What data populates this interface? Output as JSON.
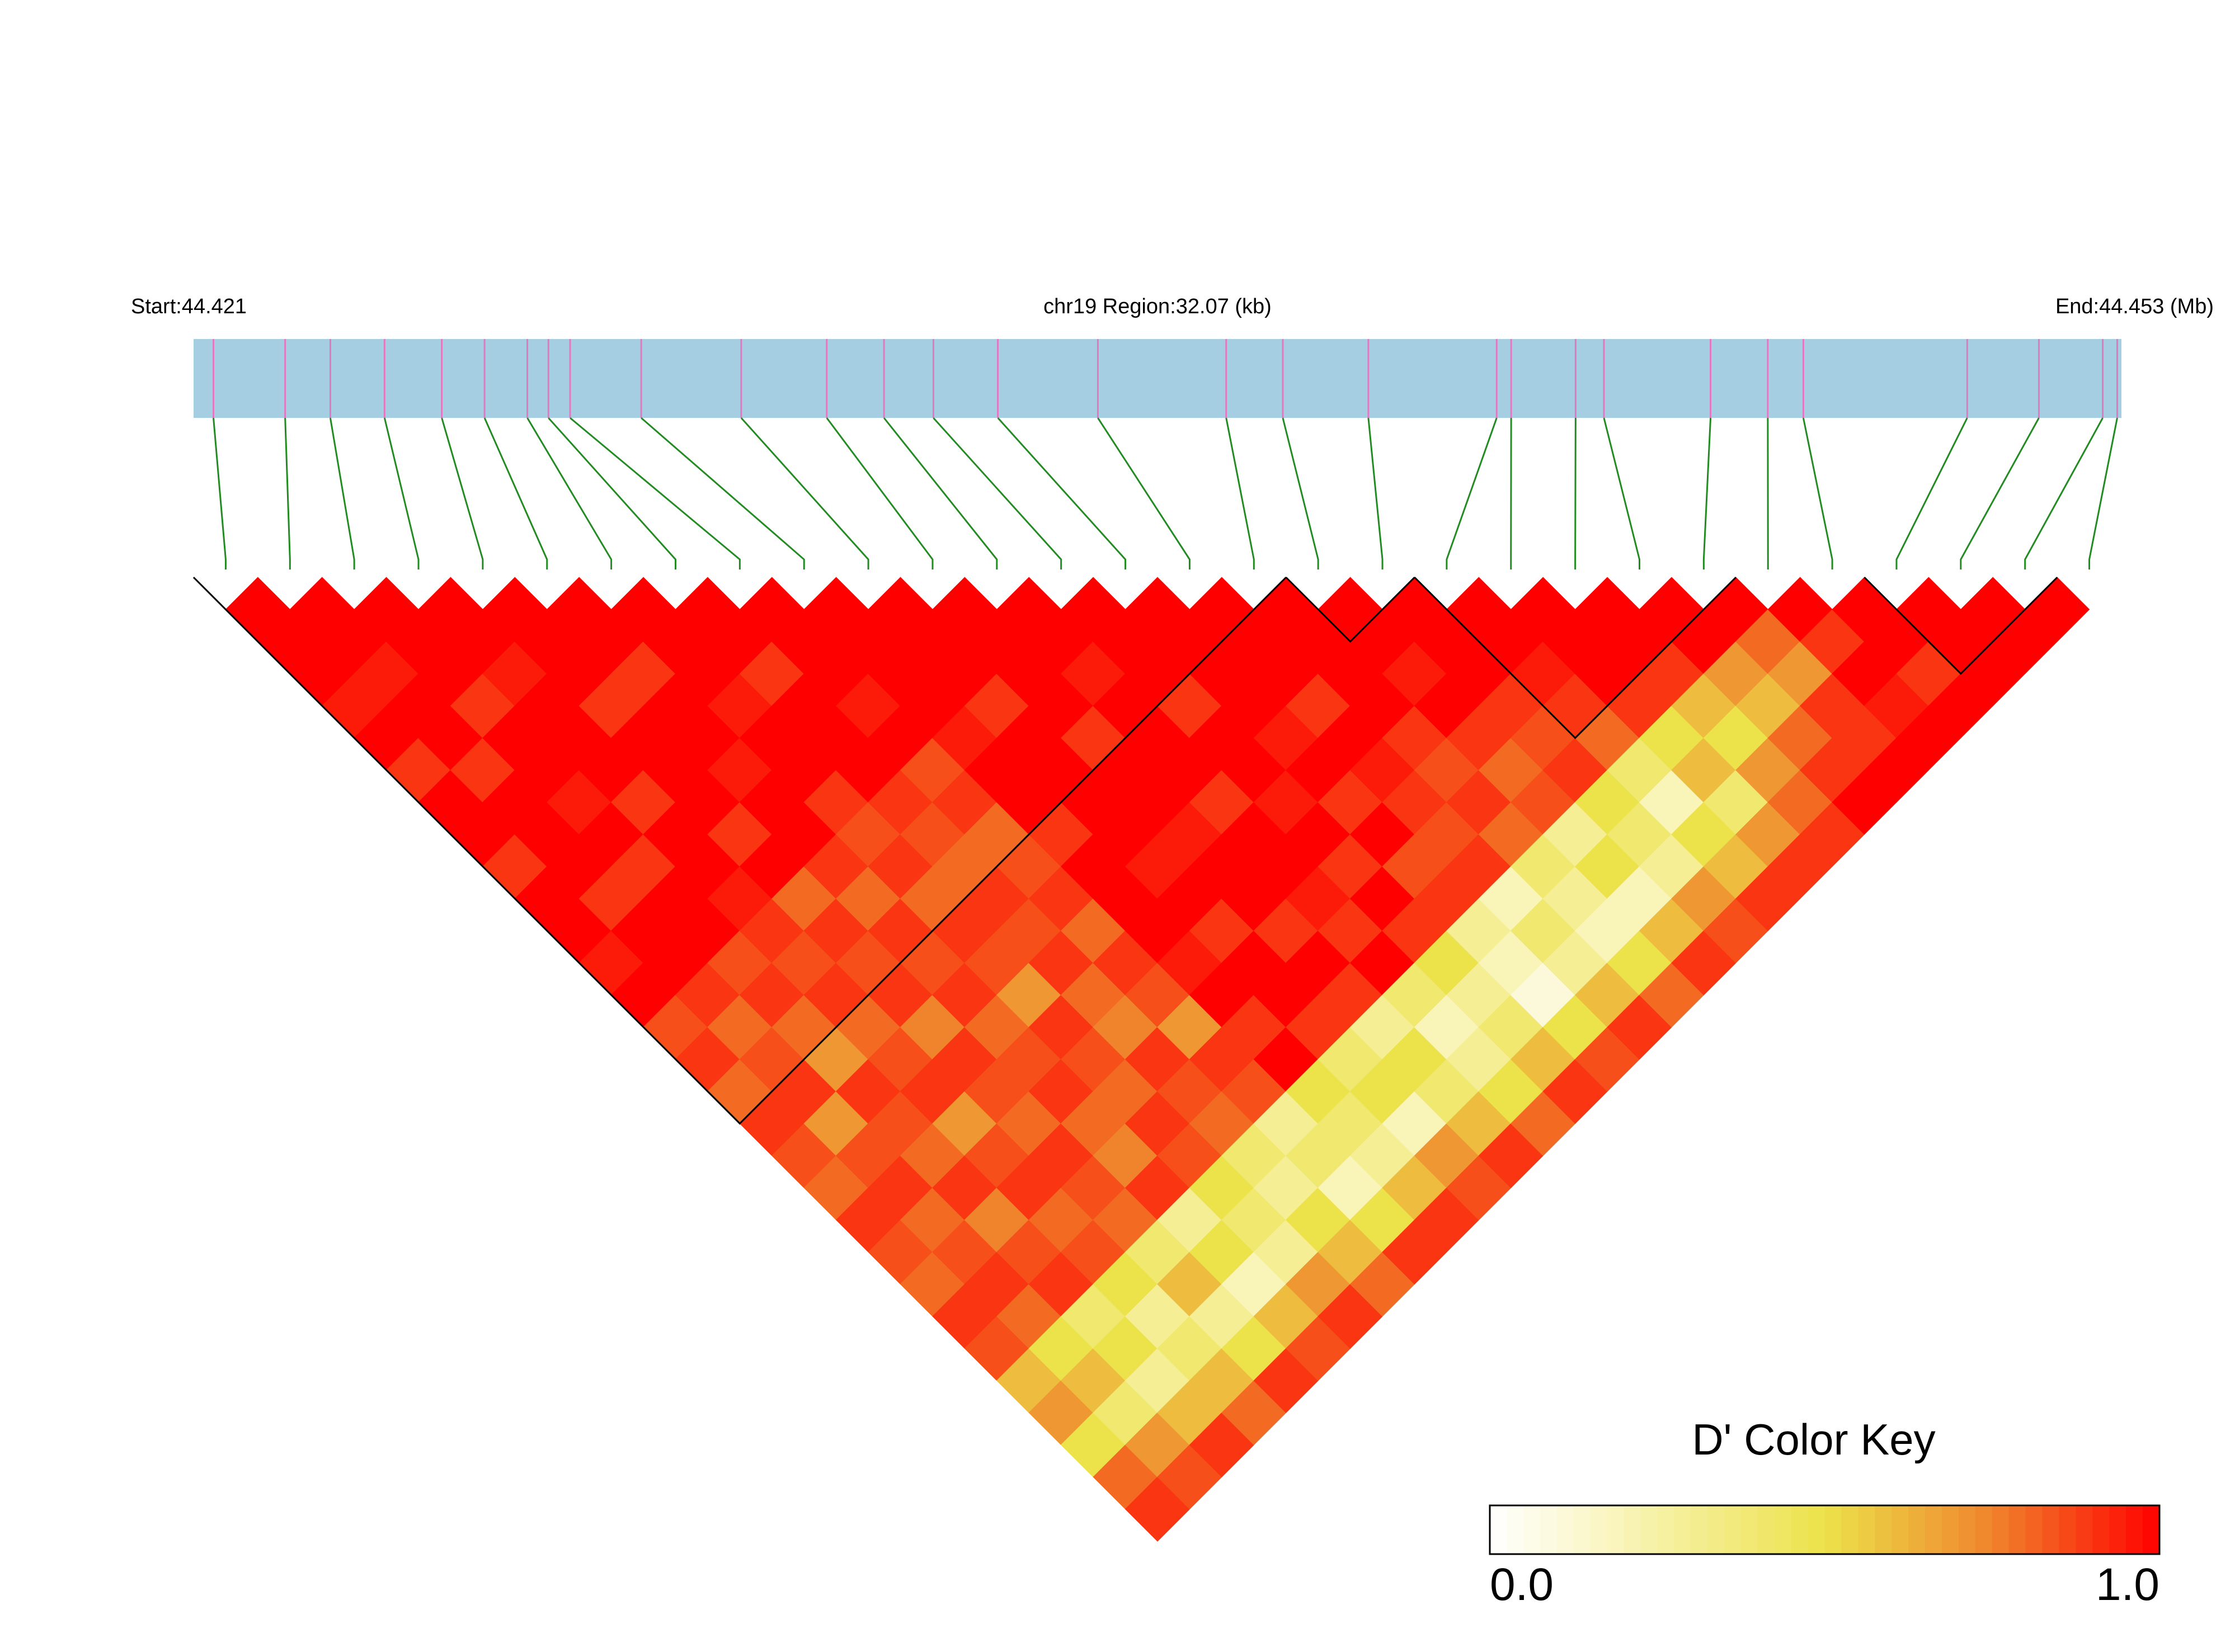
{
  "chart_data": {
    "type": "ld-heatmap",
    "title": "chr19 Region:32.07 (kb)",
    "region_start": {
      "value": 44.421,
      "label": "Start:44.421"
    },
    "region_end": {
      "value": 44.453,
      "label": "End:44.453 (Mb)"
    },
    "snp_positions": [
      44.42133,
      44.42252,
      44.42327,
      44.42417,
      44.42512,
      44.42583,
      44.42654,
      44.42689,
      44.42725,
      44.42843,
      44.43009,
      44.43151,
      44.43246,
      44.43328,
      44.43435,
      44.43601,
      44.43814,
      44.43908,
      44.4405,
      44.44263,
      44.44287,
      44.44394,
      44.44441,
      44.44618,
      44.44713,
      44.44772,
      44.45044,
      44.45163,
      44.45269,
      44.45293
    ],
    "dprime": [
      [
        1,
        1,
        1,
        0.95,
        1,
        0.9,
        1,
        1,
        0.9,
        1,
        1,
        0.95,
        1,
        0.85,
        0.9,
        0.8,
        0.9,
        0.85,
        0.8,
        0.9,
        0.85,
        0.8,
        0.9,
        0.85,
        0.6,
        0.7,
        0.5,
        0.8,
        0.9
      ],
      [
        1,
        1,
        0.95,
        1,
        1,
        0.9,
        1,
        1,
        1,
        0.9,
        1,
        1,
        0.9,
        0.8,
        0.85,
        0.9,
        0.7,
        0.85,
        0.9,
        0.8,
        0.85,
        0.9,
        0.8,
        0.5,
        0.6,
        0.4,
        0.7,
        0.85
      ],
      [
        1,
        1,
        1,
        0.9,
        1,
        1,
        0.95,
        1,
        0.9,
        1,
        1,
        0.85,
        0.9,
        0.8,
        0.7,
        0.9,
        0.85,
        0.8,
        0.9,
        0.75,
        0.85,
        0.9,
        0.4,
        0.5,
        0.3,
        0.6,
        0.9
      ],
      [
        1,
        1,
        0.95,
        1,
        1,
        1,
        0.9,
        1,
        1,
        0.95,
        0.9,
        0.85,
        0.9,
        0.8,
        0.85,
        0.9,
        0.7,
        0.85,
        0.9,
        0.8,
        0.85,
        0.5,
        0.3,
        0.4,
        0.6,
        0.8
      ],
      [
        1,
        1,
        1,
        0.9,
        1,
        1,
        1,
        0.9,
        1,
        0.8,
        0.9,
        0.85,
        0.9,
        0.75,
        0.9,
        0.85,
        0.8,
        0.9,
        0.85,
        0.8,
        0.4,
        0.6,
        0.3,
        0.5,
        0.9
      ],
      [
        1,
        1,
        0.9,
        1,
        1,
        0.95,
        1,
        1,
        0.9,
        0.8,
        0.9,
        0.85,
        0.9,
        0.8,
        0.85,
        0.9,
        0.8,
        0.75,
        0.9,
        0.3,
        0.5,
        0.2,
        0.6,
        0.85
      ],
      [
        1,
        1,
        1,
        0.95,
        1,
        1,
        0.9,
        0.85,
        0.9,
        0.8,
        0.9,
        0.85,
        0.7,
        0.9,
        0.85,
        0.8,
        0.9,
        0.85,
        0.5,
        0.4,
        0.3,
        0.7,
        0.9
      ],
      [
        1,
        1,
        0.9,
        1,
        1,
        1,
        0.9,
        0.85,
        0.8,
        0.9,
        0.85,
        0.9,
        0.8,
        0.75,
        0.9,
        0.85,
        0.8,
        0.4,
        0.3,
        0.5,
        0.6,
        0.8
      ],
      [
        1,
        1,
        1,
        0.95,
        1,
        0.85,
        0.9,
        0.8,
        0.85,
        0.9,
        0.8,
        0.9,
        0.85,
        0.7,
        0.9,
        0.85,
        0.3,
        0.4,
        0.2,
        0.5,
        0.9
      ],
      [
        1,
        1,
        1,
        1,
        0.95,
        1,
        1,
        0.9,
        1,
        1,
        1,
        0.95,
        1,
        0.9,
        1,
        0.5,
        0.4,
        0.3,
        0.6,
        0.9
      ],
      [
        1,
        1,
        1,
        0.9,
        1,
        1,
        1,
        1,
        0.95,
        1,
        0.9,
        1,
        1,
        0.9,
        0.4,
        0.5,
        0.2,
        0.7,
        0.85
      ],
      [
        1,
        1,
        1,
        1,
        0.9,
        1,
        1,
        0.95,
        1,
        1,
        0.9,
        1,
        0.9,
        0.3,
        0.5,
        0.4,
        0.6,
        0.9
      ],
      [
        1,
        1,
        0.95,
        1,
        1,
        1,
        0.9,
        1,
        1,
        0.95,
        0.9,
        1,
        0.4,
        0.2,
        0.3,
        0.5,
        0.8
      ],
      [
        1,
        1,
        1,
        0.9,
        1,
        1,
        0.95,
        1,
        0.9,
        1,
        0.9,
        0.5,
        0.3,
        0.4,
        0.6,
        0.9
      ],
      [
        1,
        1,
        1,
        1,
        0.95,
        1,
        0.9,
        1,
        0.85,
        0.9,
        0.3,
        0.2,
        0.1,
        0.5,
        0.85
      ],
      [
        1,
        1,
        1,
        0.9,
        1,
        0.95,
        0.9,
        0.85,
        0.9,
        0.2,
        0.4,
        0.3,
        0.6,
        0.9
      ],
      [
        1,
        1,
        1,
        1,
        0.9,
        0.85,
        0.9,
        0.8,
        0.4,
        0.3,
        0.2,
        0.5,
        0.8
      ],
      [
        1,
        1,
        0.95,
        1,
        0.9,
        0.8,
        0.85,
        0.3,
        0.5,
        0.2,
        0.6,
        0.9
      ],
      [
        1,
        1,
        1,
        0.9,
        0.85,
        0.9,
        0.5,
        0.4,
        0.3,
        0.7,
        0.85
      ],
      [
        1,
        1,
        0.95,
        0.9,
        0.8,
        0.4,
        0.2,
        0.5,
        0.6,
        0.9
      ],
      [
        1,
        1,
        1,
        0.9,
        0.5,
        0.6,
        0.4,
        0.7,
        0.9
      ],
      [
        1,
        1,
        0.9,
        0.6,
        0.5,
        0.7,
        0.8,
        0.9
      ],
      [
        1,
        1,
        0.7,
        0.6,
        0.8,
        0.9,
        1
      ],
      [
        1,
        0.8,
        0.7,
        0.9,
        0.9,
        1
      ],
      [
        1,
        0.9,
        1,
        0.95,
        1
      ],
      [
        1,
        1,
        0.9,
        1
      ],
      [
        1,
        1,
        1
      ],
      [
        1,
        1
      ],
      [
        1
      ]
    ],
    "blocks": [
      [
        0,
        16
      ],
      [
        17,
        18
      ],
      [
        19,
        23
      ],
      [
        26,
        28
      ]
    ],
    "bar_color": "#a6cee3",
    "snp_line_color": "#e377c2",
    "connector_color": "#228b22",
    "block_color": "#000000",
    "colors": [
      "#ffffff",
      "#f7f1a6",
      "#ece24a",
      "#f0842c",
      "#ff0000"
    ],
    "key_title": "D' Color Key",
    "key_ticks": [
      {
        "value": 0,
        "label": "0.0"
      },
      {
        "value": 1,
        "label": "1.0"
      }
    ]
  }
}
